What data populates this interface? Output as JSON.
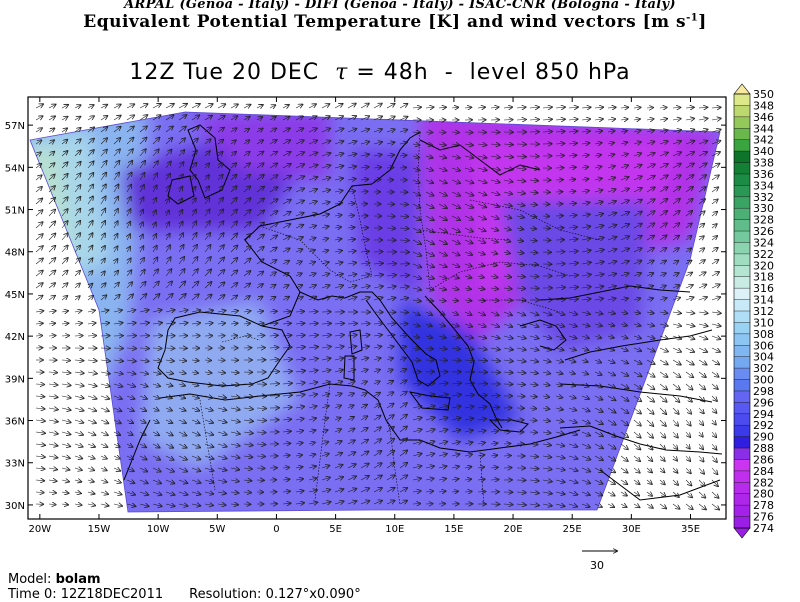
{
  "header": {
    "credits": "ARPAL (Genoa - Italy)  -  DIFI (Genoa - Italy)  -  ISAC-CNR (Bologna - Italy)",
    "title_main": "Equivalent Potential Temperature [K] and wind vectors [m s",
    "title_sup": "-1",
    "title_close": "]"
  },
  "subtitle": {
    "time": "12Z Tue 20 DEC",
    "tau_symbol": "τ",
    "tau_value": "= 48h",
    "sep": "-",
    "level": "level 850 hPa"
  },
  "axes": {
    "lon_labels": [
      "20W",
      "15W",
      "10W",
      "5W",
      "0",
      "5E",
      "10E",
      "15E",
      "20E",
      "25E",
      "30E",
      "35E"
    ],
    "lon_values": [
      -20,
      -15,
      -10,
      -5,
      0,
      5,
      10,
      15,
      20,
      25,
      30,
      35
    ],
    "lat_labels": [
      "57N",
      "54N",
      "51N",
      "48N",
      "45N",
      "42N",
      "39N",
      "36N",
      "33N",
      "30N"
    ],
    "lat_values": [
      57,
      54,
      51,
      48,
      45,
      42,
      39,
      36,
      33,
      30
    ],
    "lon_range": [
      -21,
      38
    ],
    "lat_range": [
      29,
      59
    ]
  },
  "colorbar": {
    "levels": [
      274,
      276,
      278,
      280,
      282,
      284,
      286,
      288,
      290,
      292,
      294,
      296,
      298,
      300,
      302,
      304,
      306,
      308,
      310,
      312,
      314,
      316,
      318,
      320,
      322,
      324,
      326,
      328,
      330,
      332,
      334,
      336,
      338,
      340,
      342,
      344,
      346,
      348,
      350
    ],
    "colors": {
      "274": "#9a1ee6",
      "276": "#a321e8",
      "278": "#ad26ea",
      "280": "#b72bec",
      "282": "#c12fee",
      "284": "#cb34f0",
      "286": "#8a2ee8",
      "288": "#2f1ee0",
      "290": "#3a3aea",
      "292": "#4b4bf0",
      "294": "#5858f2",
      "296": "#6565f4",
      "298": "#5a78f0",
      "300": "#6a8cf2",
      "302": "#74a8f0",
      "304": "#80b6f2",
      "306": "#8cc4f2",
      "308": "#9ad2f4",
      "310": "#b0def6",
      "312": "#c8eaf8",
      "314": "#dcf2f8",
      "316": "#c8ece4",
      "318": "#b4e4d2",
      "320": "#a0dcc0",
      "322": "#8cd4b0",
      "324": "#74c89e",
      "326": "#60bc8a",
      "328": "#4cb076",
      "330": "#3aa464",
      "332": "#2a9854",
      "334": "#1c8c44",
      "336": "#148036",
      "338": "#0e742a",
      "340": "#3aa440",
      "342": "#6ab84c",
      "344": "#94c85a",
      "346": "#bcd86e",
      "348": "#dce88a",
      "350": "#f8e8a0"
    }
  },
  "wind_reference": {
    "value": "30"
  },
  "footer": {
    "model_label": "Model:",
    "model_value": "bolam",
    "time0_label": "Time 0:",
    "time0_value": "12Z18DEC2011",
    "res_label": "Resolution:",
    "res_value": "0.127°x0.090°"
  }
}
